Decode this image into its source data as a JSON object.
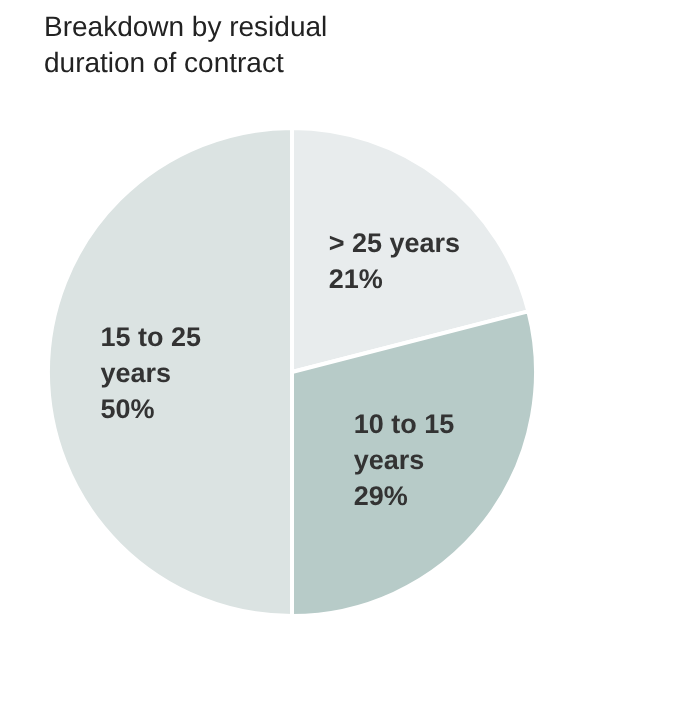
{
  "chart_data": {
    "type": "pie",
    "title": "Breakdown by residual duration of contract",
    "categories": [
      "> 25 years",
      "10 to 15 years",
      "15 to 25 years"
    ],
    "values": [
      21,
      29,
      50
    ],
    "colors": [
      "#e8eced",
      "#b7cbc8",
      "#dbe3e2"
    ],
    "value_labels": [
      "21%",
      "29%",
      "50%"
    ]
  }
}
